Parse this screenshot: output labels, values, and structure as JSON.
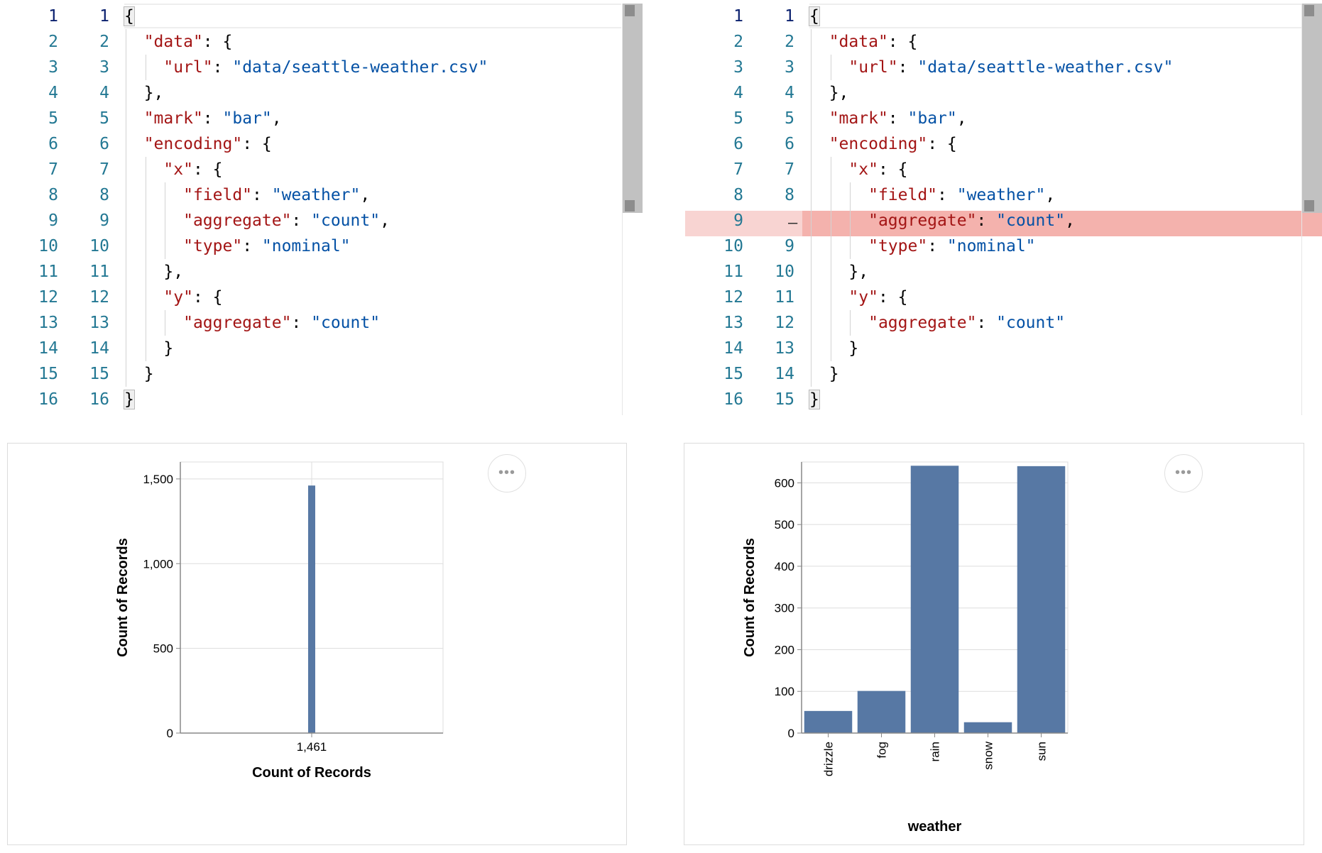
{
  "left_editor": {
    "gutter": [
      [
        "1",
        "1"
      ],
      [
        "2",
        "2"
      ],
      [
        "3",
        "3"
      ],
      [
        "4",
        "4"
      ],
      [
        "5",
        "5"
      ],
      [
        "6",
        "6"
      ],
      [
        "7",
        "7"
      ],
      [
        "8",
        "8"
      ],
      [
        "9",
        "9"
      ],
      [
        "10",
        "10"
      ],
      [
        "11",
        "11"
      ],
      [
        "12",
        "12"
      ],
      [
        "13",
        "13"
      ],
      [
        "14",
        "14"
      ],
      [
        "15",
        "15"
      ],
      [
        "16",
        "16"
      ]
    ],
    "lines": [
      [
        [
          "p",
          "{"
        ]
      ],
      [
        [
          "k",
          "\"data\""
        ],
        [
          "p",
          ": {"
        ]
      ],
      [
        [
          "k",
          "\"url\""
        ],
        [
          "p",
          ": "
        ],
        [
          "s",
          "\"data/seattle-weather.csv\""
        ]
      ],
      [
        [
          "p",
          "},"
        ]
      ],
      [
        [
          "k",
          "\"mark\""
        ],
        [
          "p",
          ": "
        ],
        [
          "s",
          "\"bar\""
        ],
        [
          "p",
          ","
        ]
      ],
      [
        [
          "k",
          "\"encoding\""
        ],
        [
          "p",
          ": {"
        ]
      ],
      [
        [
          "k",
          "\"x\""
        ],
        [
          "p",
          ": {"
        ]
      ],
      [
        [
          "k",
          "\"field\""
        ],
        [
          "p",
          ": "
        ],
        [
          "s",
          "\"weather\""
        ],
        [
          "p",
          ","
        ]
      ],
      [
        [
          "k",
          "\"aggregate\""
        ],
        [
          "p",
          ": "
        ],
        [
          "s",
          "\"count\""
        ],
        [
          "p",
          ","
        ]
      ],
      [
        [
          "k",
          "\"type\""
        ],
        [
          "p",
          ": "
        ],
        [
          "s",
          "\"nominal\""
        ]
      ],
      [
        [
          "p",
          "},"
        ]
      ],
      [
        [
          "k",
          "\"y\""
        ],
        [
          "p",
          ": {"
        ]
      ],
      [
        [
          "k",
          "\"aggregate\""
        ],
        [
          "p",
          ": "
        ],
        [
          "s",
          "\"count\""
        ]
      ],
      [
        [
          "p",
          "}"
        ]
      ],
      [
        [
          "p",
          "}"
        ]
      ],
      [
        [
          "p",
          "}"
        ]
      ]
    ]
  },
  "right_editor": {
    "gutter": [
      [
        "1",
        "1"
      ],
      [
        "2",
        "2"
      ],
      [
        "3",
        "3"
      ],
      [
        "4",
        "4"
      ],
      [
        "5",
        "5"
      ],
      [
        "6",
        "6"
      ],
      [
        "7",
        "7"
      ],
      [
        "8",
        "8"
      ],
      [
        "9",
        ""
      ],
      [
        "10",
        "9"
      ],
      [
        "11",
        "10"
      ],
      [
        "12",
        "11"
      ],
      [
        "13",
        "12"
      ],
      [
        "14",
        "13"
      ],
      [
        "15",
        "14"
      ],
      [
        "16",
        "15"
      ]
    ],
    "deleted_marker": "—",
    "lines": [
      [
        [
          "p",
          "{"
        ]
      ],
      [
        [
          "k",
          "\"data\""
        ],
        [
          "p",
          ": {"
        ]
      ],
      [
        [
          "k",
          "\"url\""
        ],
        [
          "p",
          ": "
        ],
        [
          "s",
          "\"data/seattle-weather.csv\""
        ]
      ],
      [
        [
          "p",
          "},"
        ]
      ],
      [
        [
          "k",
          "\"mark\""
        ],
        [
          "p",
          ": "
        ],
        [
          "s",
          "\"bar\""
        ],
        [
          "p",
          ","
        ]
      ],
      [
        [
          "k",
          "\"encoding\""
        ],
        [
          "p",
          ": {"
        ]
      ],
      [
        [
          "k",
          "\"x\""
        ],
        [
          "p",
          ": {"
        ]
      ],
      [
        [
          "k",
          "\"field\""
        ],
        [
          "p",
          ": "
        ],
        [
          "s",
          "\"weather\""
        ],
        [
          "p",
          ","
        ]
      ],
      [
        [
          "k",
          "\"aggregate\""
        ],
        [
          "p",
          ": "
        ],
        [
          "s",
          "\"count\""
        ],
        [
          "p",
          ","
        ]
      ],
      [
        [
          "k",
          "\"type\""
        ],
        [
          "p",
          ": "
        ],
        [
          "s",
          "\"nominal\""
        ]
      ],
      [
        [
          "p",
          "},"
        ]
      ],
      [
        [
          "k",
          "\"y\""
        ],
        [
          "p",
          ": {"
        ]
      ],
      [
        [
          "k",
          "\"aggregate\""
        ],
        [
          "p",
          ": "
        ],
        [
          "s",
          "\"count\""
        ]
      ],
      [
        [
          "p",
          "}"
        ]
      ],
      [
        [
          "p",
          "}"
        ]
      ],
      [
        [
          "p",
          "}"
        ]
      ]
    ]
  },
  "actions_menu_label": "•••",
  "chart_data": [
    {
      "type": "bar",
      "categories": [
        "1,461"
      ],
      "values": [
        1461
      ],
      "xlabel": "Count of Records",
      "ylabel": "Count of Records",
      "ylim": [
        0,
        1600
      ],
      "yticks": [
        "0",
        "500",
        "1,000",
        "1,500"
      ],
      "ytick_values": [
        0,
        500,
        1000,
        1500
      ],
      "grid": true,
      "bar_color": "#5778a4"
    },
    {
      "type": "bar",
      "categories": [
        "drizzle",
        "fog",
        "rain",
        "snow",
        "sun"
      ],
      "values": [
        53,
        101,
        641,
        26,
        640
      ],
      "xlabel": "weather",
      "ylabel": "Count of Records",
      "ylim": [
        0,
        650
      ],
      "yticks": [
        "0",
        "100",
        "200",
        "300",
        "400",
        "500",
        "600"
      ],
      "ytick_values": [
        0,
        100,
        200,
        300,
        400,
        500,
        600
      ],
      "grid": true,
      "bar_color": "#5778a4"
    }
  ]
}
